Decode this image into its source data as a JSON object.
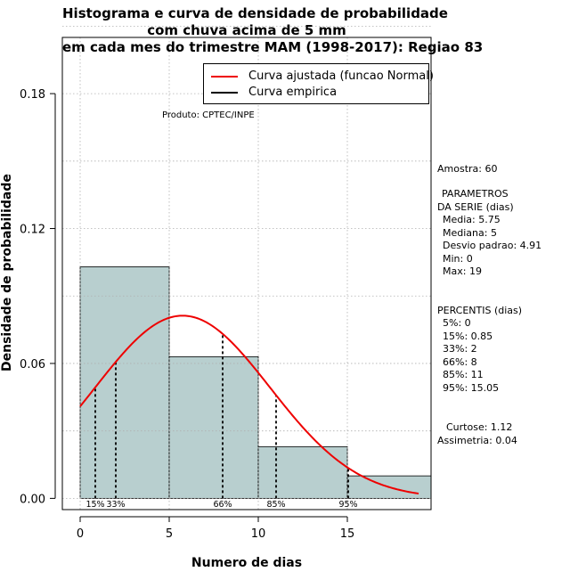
{
  "title_lines": [
    "Histograma e curva de densidade de probabilidade",
    "com chuva acima de 5 mm",
    "em cada mes do trimestre MAM (1998-2017): Regiao 83"
  ],
  "credit": "Produto: CPTEC/INPE",
  "legend": {
    "normal_label": "Curva ajustada (funcao Normal)",
    "empirical_label": "Curva empirica"
  },
  "stats": {
    "amostra": "Amostra: 60",
    "param_title_1": "PARAMETROS",
    "param_title_2": "DA SERIE (dias)",
    "media": "Media: 5.75",
    "mediana": "Mediana: 5",
    "desvio": "Desvio padrao: 4.91",
    "min": "Min: 0",
    "max": "Max: 19",
    "perc_title": "PERCENTIS (dias)",
    "p5": "5%: 0",
    "p15": "15%: 0.85",
    "p33": "33%: 2",
    "p66": "66%: 8",
    "p85": "85%: 11",
    "p95": "95%: 15.05",
    "curtose": "Curtose: 1.12",
    "assimetria": "Assimetria: 0.04"
  },
  "colors": {
    "bar_fill": "#b8cfcf",
    "normal_curve": "#ee0000",
    "grid": "#b0b0b0"
  },
  "chart_data": {
    "type": "histogram",
    "title": "Histograma e curva de densidade de probabilidade com chuva acima de 5 mm em cada mes do trimestre MAM (1998-2017): Regiao 83",
    "xlabel": "Numero de dias",
    "ylabel": "Densidade de probabilidade",
    "xlim": [
      -1,
      19.7
    ],
    "ylim": [
      -0.005,
      0.205
    ],
    "x_ticks": [
      0,
      5,
      10,
      15
    ],
    "y_ticks": [
      0.0,
      0.06,
      0.12,
      0.18
    ],
    "y_tick_labels": [
      "0.00",
      "0.06",
      "0.12",
      "0.18"
    ],
    "grid": true,
    "bins": [
      {
        "from": 0,
        "to": 5,
        "density": 0.103
      },
      {
        "from": 5,
        "to": 10,
        "density": 0.063
      },
      {
        "from": 10,
        "to": 15,
        "density": 0.023
      },
      {
        "from": 15,
        "to": 20,
        "density": 0.01
      }
    ],
    "normal_fit": {
      "mean": 5.75,
      "sd": 4.91,
      "x_range": [
        0,
        19
      ]
    },
    "percentile_markers": [
      {
        "label": "15%",
        "x": 0.85
      },
      {
        "label": "33%",
        "x": 2
      },
      {
        "label": "66%",
        "x": 8
      },
      {
        "label": "85%",
        "x": 11
      },
      {
        "label": "95%",
        "x": 15.05
      }
    ]
  }
}
